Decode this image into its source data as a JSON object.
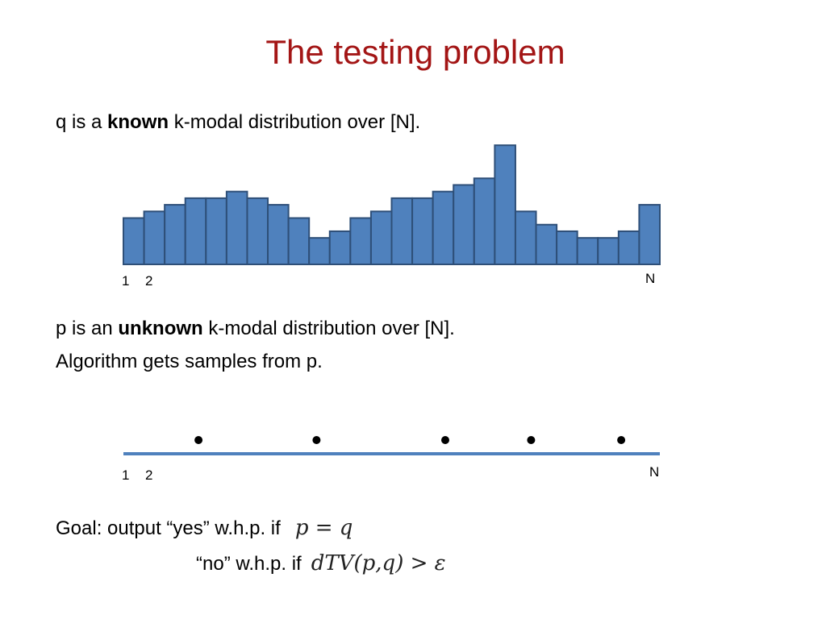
{
  "slide": {
    "title": "The testing problem",
    "q_line": {
      "prefix": "q is a ",
      "bold": "known",
      "suffix": " k-modal distribution over [N]."
    },
    "p_line": {
      "prefix": "p is an ",
      "bold": "unknown",
      "suffix": " k-modal distribution over [N]."
    },
    "samples_line": "Algorithm gets samples from p.",
    "goal": {
      "label": "Goal:  output “yes” w.h.p.  if",
      "yes_condition": "p = q",
      "no_label": "“no” w.h.p.  if",
      "no_condition": "dTV(p,q) > ε"
    }
  },
  "chart_data": [
    {
      "type": "bar",
      "x_tick_labels": [
        "1",
        "2",
        "N"
      ],
      "values": [
        7,
        8,
        9,
        10,
        10,
        11,
        10,
        9,
        7,
        4,
        5,
        7,
        8,
        10,
        10,
        11,
        12,
        13,
        18,
        8,
        6,
        5,
        4,
        4,
        5,
        9
      ],
      "ylim": [
        0,
        19
      ],
      "bar_color": "#4f81bd",
      "bar_edge_color": "#2e4f78"
    },
    {
      "type": "scatter",
      "x_tick_labels": [
        "1",
        "2",
        "N"
      ],
      "xlim": [
        1,
        26
      ],
      "points": [
        4.5,
        10,
        16,
        20,
        24.2
      ],
      "axis_color": "#4f81bd"
    }
  ]
}
